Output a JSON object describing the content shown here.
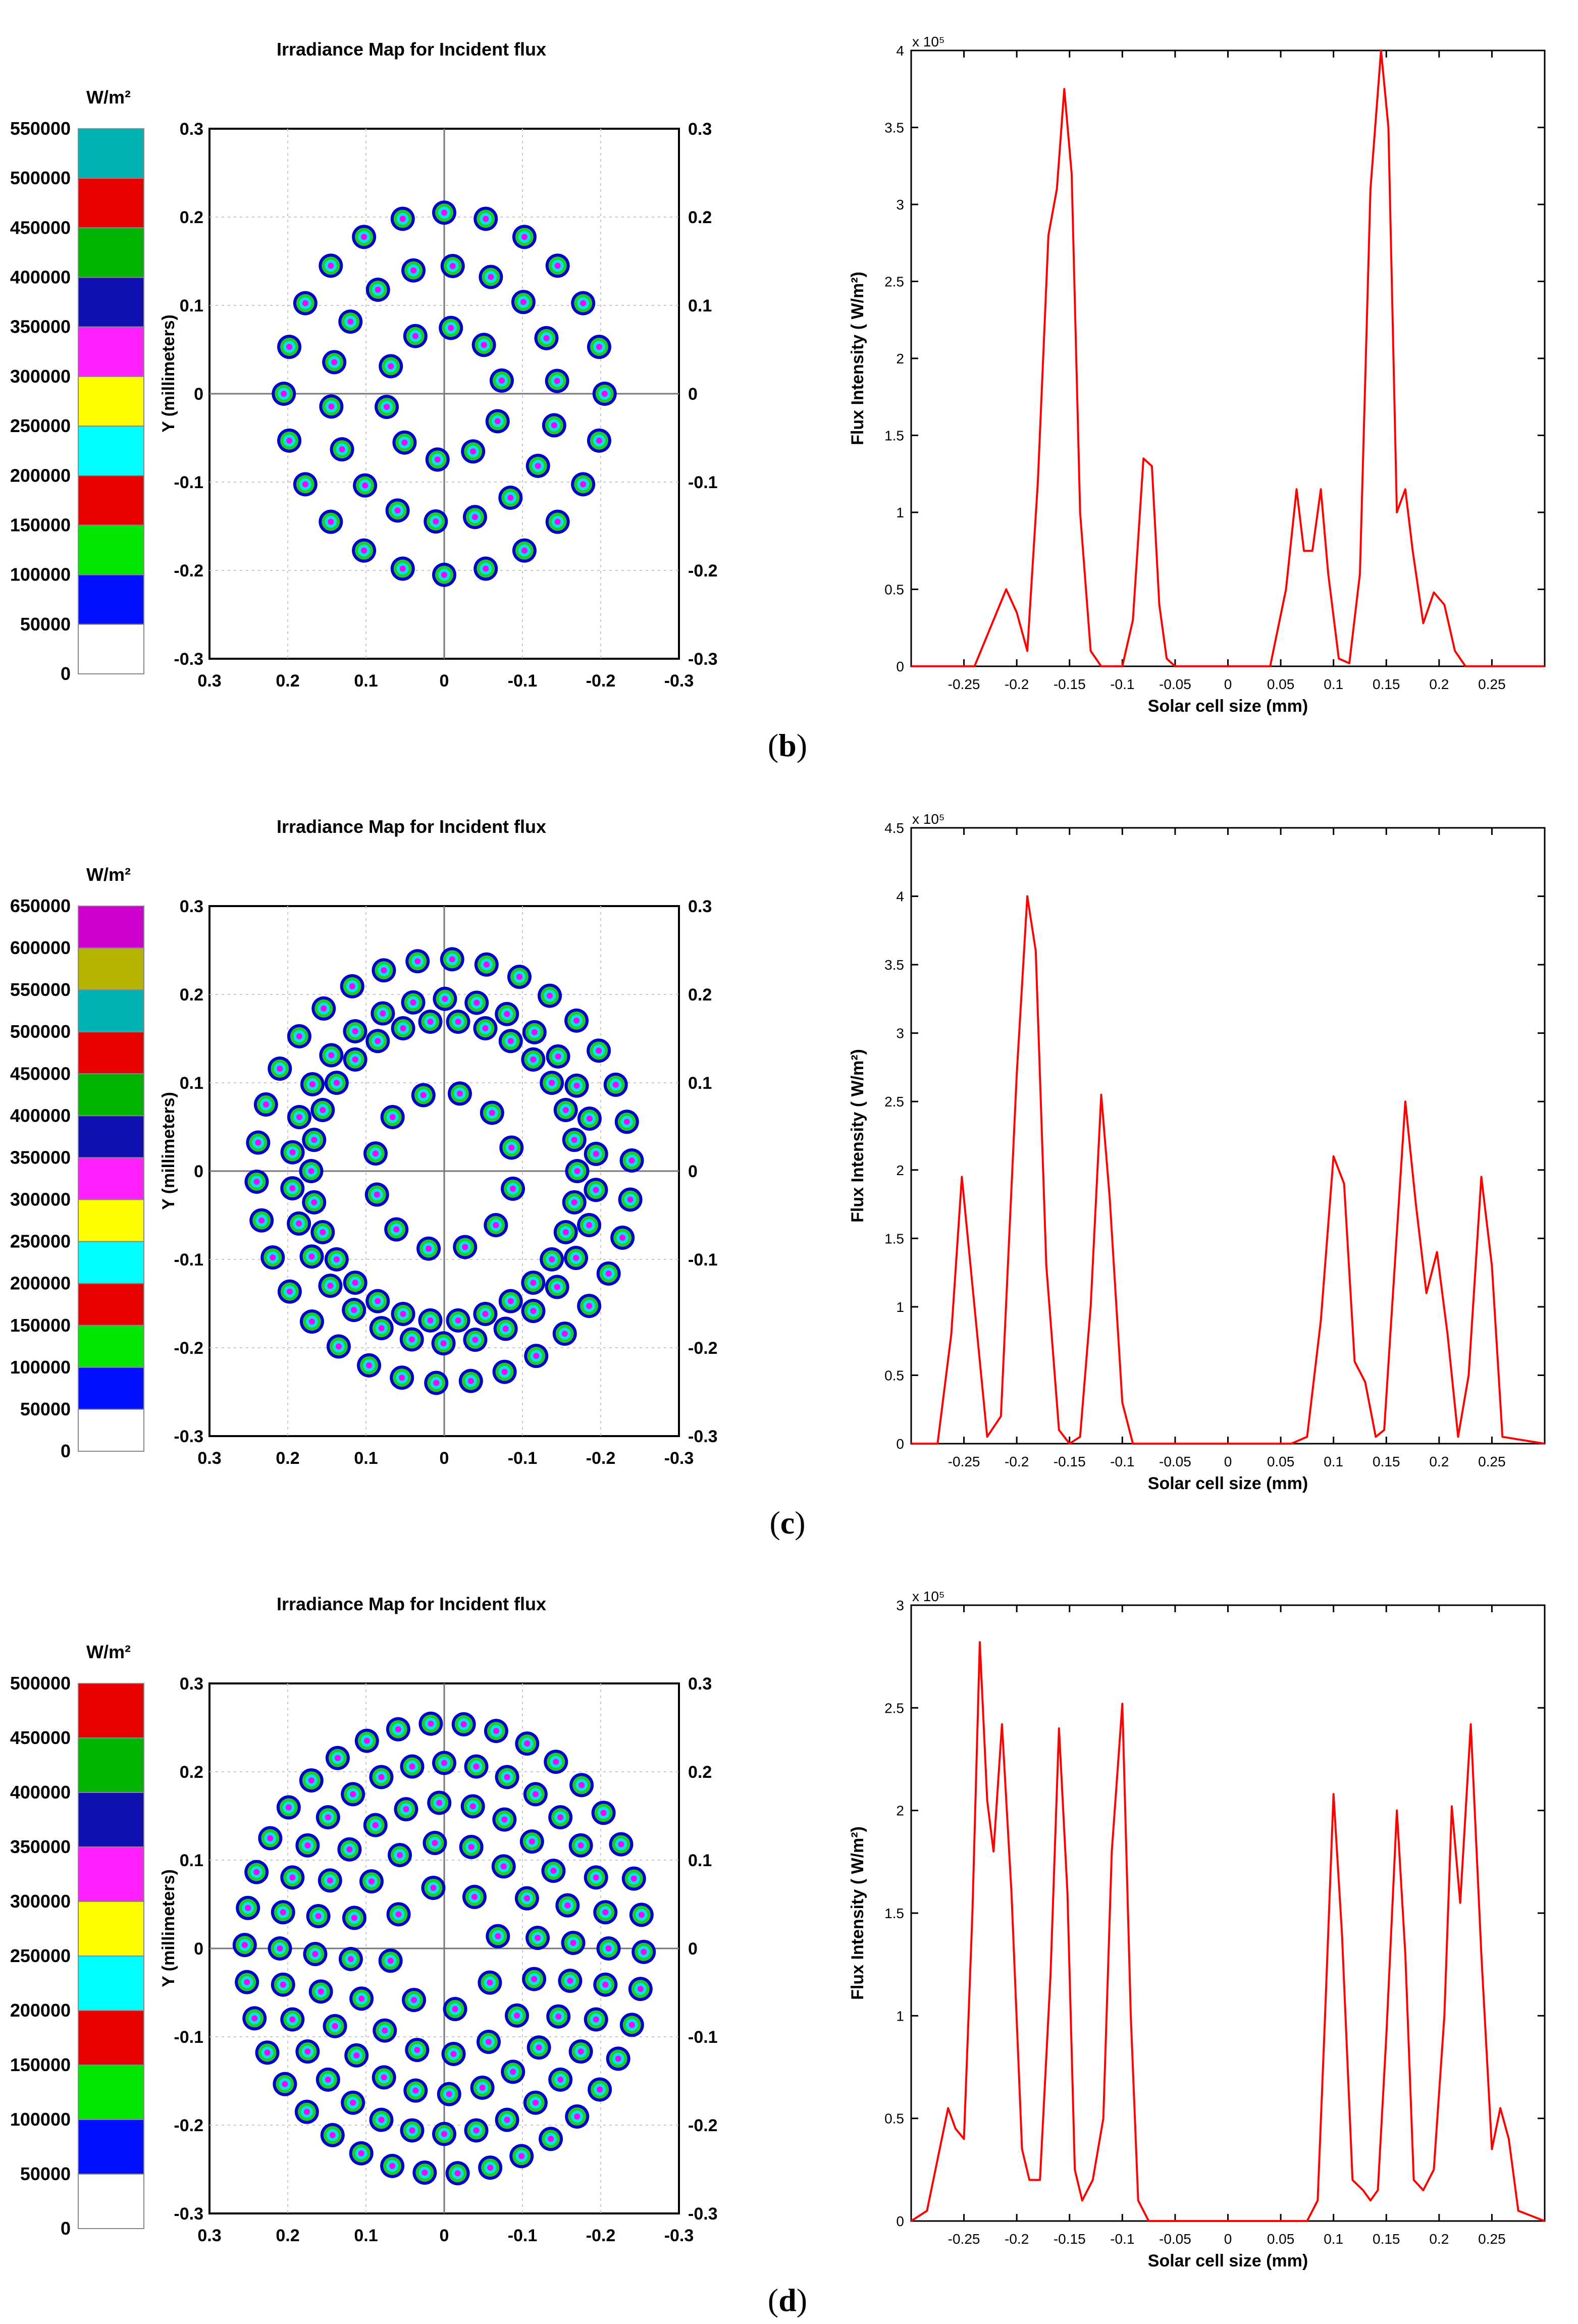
{
  "colors": {
    "line": "#ff0000",
    "blob_outer": "#0000cc",
    "blob_mid": "#22cc22",
    "blob_inner": "#00e5e5",
    "blob_core": "#ff00ff",
    "grid": "#c8c8c8"
  },
  "panels": [
    {
      "id": "b",
      "label": "b",
      "map": {
        "title": "Irradiance Map for Incident flux",
        "colorbar_unit": "W/m²",
        "colorbar_labels": [
          "550000",
          "500000",
          "450000",
          "400000",
          "350000",
          "300000",
          "250000",
          "200000",
          "150000",
          "100000",
          "50000",
          "0"
        ],
        "colorbar_colors": [
          "#00b3b3",
          "#e60000",
          "#00b300",
          "#1010b0",
          "#ff22ff",
          "#ffff00",
          "#00ffff",
          "#e60000",
          "#00e600",
          "#0010ff",
          "#ffffff"
        ],
        "ylabel": "Y (millimeters)",
        "x_ticks": [
          "0.3",
          "0.2",
          "0.1",
          "0",
          "-0.1",
          "-0.2",
          "-0.3"
        ],
        "y_ticks_left": [
          "0.3",
          "0.2",
          "0.1",
          "0",
          "-0.1",
          "-0.2",
          "-0.3"
        ],
        "y_ticks_right": [
          "0.3",
          "0.2",
          "0.1",
          "0",
          "-0.1",
          "-0.2",
          "-0.3"
        ],
        "rings": [
          {
            "r": 0.075,
            "count": 10,
            "phase": 0.2
          },
          {
            "r": 0.145,
            "count": 18,
            "phase": 0.1
          },
          {
            "r": 0.205,
            "count": 24,
            "phase": 0.0
          }
        ]
      },
      "chart_data": {
        "type": "line",
        "title": "",
        "xlabel": "Solar cell size (mm)",
        "ylabel": "Flux Intensity ( W/m²)",
        "exponent_label": "x 10⁵",
        "xlim": [
          -0.3,
          0.3
        ],
        "ylim": [
          0,
          4
        ],
        "x_ticks": [
          "-0.25",
          "-0.2",
          "-0.15",
          "-0.1",
          "-0.05",
          "0",
          "0.05",
          "0.1",
          "0.15",
          "0.2",
          "0.25"
        ],
        "y_ticks": [
          "0",
          "0.5",
          "1",
          "1.5",
          "2",
          "2.5",
          "3",
          "3.5",
          "4"
        ],
        "series": [
          {
            "name": "Flux intensity",
            "x": [
              -0.3,
              -0.24,
              -0.225,
              -0.21,
              -0.2,
              -0.19,
              -0.18,
              -0.17,
              -0.162,
              -0.155,
              -0.148,
              -0.14,
              -0.13,
              -0.12,
              -0.1,
              -0.09,
              -0.08,
              -0.072,
              -0.065,
              -0.058,
              -0.05,
              0.04,
              0.055,
              0.065,
              0.072,
              0.08,
              0.088,
              0.095,
              0.105,
              0.115,
              0.125,
              0.135,
              0.145,
              0.152,
              0.16,
              0.168,
              0.175,
              0.185,
              0.195,
              0.205,
              0.215,
              0.225,
              0.24,
              0.3
            ],
            "y": [
              0,
              0,
              0.25,
              0.5,
              0.35,
              0.1,
              1.2,
              2.8,
              3.1,
              3.75,
              3.2,
              1.0,
              0.1,
              0,
              0,
              0.3,
              1.35,
              1.3,
              0.4,
              0.05,
              0,
              0,
              0.5,
              1.15,
              0.75,
              0.75,
              1.15,
              0.6,
              0.05,
              0.02,
              0.6,
              3.1,
              4.0,
              3.5,
              1.0,
              1.15,
              0.75,
              0.28,
              0.48,
              0.4,
              0.1,
              0,
              0,
              0
            ]
          }
        ]
      }
    },
    {
      "id": "c",
      "label": "c",
      "map": {
        "title": "Irradiance Map for Incident flux",
        "colorbar_unit": "W/m²",
        "colorbar_labels": [
          "650000",
          "600000",
          "550000",
          "500000",
          "450000",
          "400000",
          "350000",
          "300000",
          "250000",
          "200000",
          "150000",
          "100000",
          "50000",
          "0"
        ],
        "colorbar_colors": [
          "#cc00cc",
          "#b3b300",
          "#00b3b3",
          "#e60000",
          "#00b300",
          "#1010b0",
          "#ff22ff",
          "#ffff00",
          "#00ffff",
          "#e60000",
          "#00e600",
          "#0010ff",
          "#ffffff"
        ],
        "ylabel": "Y (millimeters)",
        "x_ticks": [
          "0.3",
          "0.2",
          "0.1",
          "0",
          "-0.1",
          "-0.2",
          "-0.3"
        ],
        "y_ticks_left": [
          "0.3",
          "0.2",
          "0.1",
          "0",
          "-0.1",
          "-0.2",
          "-0.3"
        ],
        "y_ticks_right": [
          "0.3",
          "0.2",
          "0.1",
          "0",
          "-0.1",
          "-0.2",
          "-0.3"
        ],
        "rings": [
          {
            "r": 0.09,
            "count": 12,
            "phase": 0.3
          },
          {
            "r": 0.17,
            "count": 30,
            "phase": 0.0
          },
          {
            "r": 0.195,
            "count": 30,
            "phase": 0.1
          },
          {
            "r": 0.24,
            "count": 34,
            "phase": 0.05
          }
        ]
      },
      "chart_data": {
        "type": "line",
        "title": "",
        "xlabel": "Solar cell size (mm)",
        "ylabel": "Flux Intensity ( W/m²)",
        "exponent_label": "x 10⁵",
        "xlim": [
          -0.3,
          0.3
        ],
        "ylim": [
          0,
          4.5
        ],
        "x_ticks": [
          "-0.25",
          "-0.2",
          "-0.15",
          "-0.1",
          "-0.05",
          "0",
          "0.05",
          "0.1",
          "0.15",
          "0.2",
          "0.25"
        ],
        "y_ticks": [
          "0",
          "0.5",
          "1",
          "1.5",
          "2",
          "2.5",
          "3",
          "3.5",
          "4",
          "4.5"
        ],
        "series": [
          {
            "name": "Flux intensity",
            "x": [
              -0.3,
              -0.275,
              -0.262,
              -0.252,
              -0.24,
              -0.228,
              -0.215,
              -0.2,
              -0.19,
              -0.182,
              -0.172,
              -0.16,
              -0.15,
              -0.14,
              -0.13,
              -0.12,
              -0.112,
              -0.1,
              -0.09,
              -0.08,
              0.06,
              0.075,
              0.088,
              0.1,
              0.11,
              0.12,
              0.13,
              0.14,
              0.148,
              0.158,
              0.168,
              0.178,
              0.188,
              0.198,
              0.208,
              0.218,
              0.228,
              0.24,
              0.25,
              0.26,
              0.3
            ],
            "y": [
              0,
              0,
              0.8,
              1.95,
              1.0,
              0.05,
              0.2,
              2.7,
              4.0,
              3.6,
              1.3,
              0.1,
              0,
              0.05,
              1.0,
              2.55,
              1.8,
              0.3,
              0,
              0,
              0,
              0.05,
              0.9,
              2.1,
              1.9,
              0.6,
              0.45,
              0.05,
              0.1,
              1.3,
              2.5,
              1.75,
              1.1,
              1.4,
              0.8,
              0.05,
              0.5,
              1.95,
              1.3,
              0.05,
              0
            ]
          }
        ]
      }
    },
    {
      "id": "d",
      "label": "d",
      "map": {
        "title": "Irradiance Map for Incident flux",
        "colorbar_unit": "W/m²",
        "colorbar_labels": [
          "500000",
          "450000",
          "400000",
          "350000",
          "300000",
          "250000",
          "200000",
          "150000",
          "100000",
          "50000",
          "0"
        ],
        "colorbar_colors": [
          "#e60000",
          "#00b300",
          "#1010b0",
          "#ff22ff",
          "#ffff00",
          "#00ffff",
          "#e60000",
          "#00e600",
          "#0010ff",
          "#ffffff"
        ],
        "ylabel": "Y (millimeters)",
        "x_ticks": [
          "0.3",
          "0.2",
          "0.1",
          "0",
          "-0.1",
          "-0.2",
          "-0.3"
        ],
        "y_ticks_left": [
          "0.3",
          "0.2",
          "0.1",
          "0",
          "-0.1",
          "-0.2",
          "-0.3"
        ],
        "y_ticks_right": [
          "0.3",
          "0.2",
          "0.1",
          "0",
          "-0.1",
          "-0.2",
          "-0.3"
        ],
        "rings": [
          {
            "r": 0.07,
            "count": 8,
            "phase": 0.2
          },
          {
            "r": 0.12,
            "count": 16,
            "phase": 0.1
          },
          {
            "r": 0.165,
            "count": 24,
            "phase": 0.3
          },
          {
            "r": 0.21,
            "count": 32,
            "phase": 0.0
          },
          {
            "r": 0.255,
            "count": 38,
            "phase": 0.15
          }
        ]
      },
      "chart_data": {
        "type": "line",
        "title": "",
        "xlabel": "Solar cell size (mm)",
        "ylabel": "Flux Intensity ( W/m²)",
        "exponent_label": "x 10⁵",
        "xlim": [
          -0.3,
          0.3
        ],
        "ylim": [
          0,
          3
        ],
        "x_ticks": [
          "-0.25",
          "-0.2",
          "-0.15",
          "-0.1",
          "-0.05",
          "0",
          "0.05",
          "0.1",
          "0.15",
          "0.2",
          "0.25"
        ],
        "y_ticks": [
          "0",
          "0.5",
          "1",
          "1.5",
          "2",
          "2.5",
          "3"
        ],
        "series": [
          {
            "name": "Flux intensity",
            "x": [
              -0.3,
              -0.285,
              -0.275,
              -0.265,
              -0.258,
              -0.25,
              -0.242,
              -0.235,
              -0.228,
              -0.222,
              -0.214,
              -0.205,
              -0.195,
              -0.188,
              -0.178,
              -0.168,
              -0.16,
              -0.152,
              -0.145,
              -0.138,
              -0.128,
              -0.118,
              -0.11,
              -0.1,
              -0.092,
              -0.085,
              -0.075,
              0.075,
              0.085,
              0.092,
              0.1,
              0.108,
              0.118,
              0.128,
              0.135,
              0.142,
              0.15,
              0.16,
              0.168,
              0.176,
              0.185,
              0.195,
              0.205,
              0.212,
              0.22,
              0.23,
              0.24,
              0.25,
              0.258,
              0.266,
              0.275,
              0.3
            ],
            "y": [
              0,
              0.05,
              0.3,
              0.55,
              0.45,
              0.4,
              1.5,
              2.82,
              2.05,
              1.8,
              2.42,
              1.6,
              0.35,
              0.2,
              0.2,
              1.2,
              2.4,
              1.6,
              0.25,
              0.1,
              0.2,
              0.5,
              1.8,
              2.52,
              1.0,
              0.1,
              0,
              0,
              0.1,
              1.0,
              2.08,
              1.4,
              0.2,
              0.15,
              0.1,
              0.15,
              0.9,
              2.0,
              1.3,
              0.2,
              0.15,
              0.25,
              1.0,
              2.02,
              1.55,
              2.42,
              1.3,
              0.35,
              0.55,
              0.4,
              0.05,
              0
            ]
          }
        ]
      }
    }
  ]
}
